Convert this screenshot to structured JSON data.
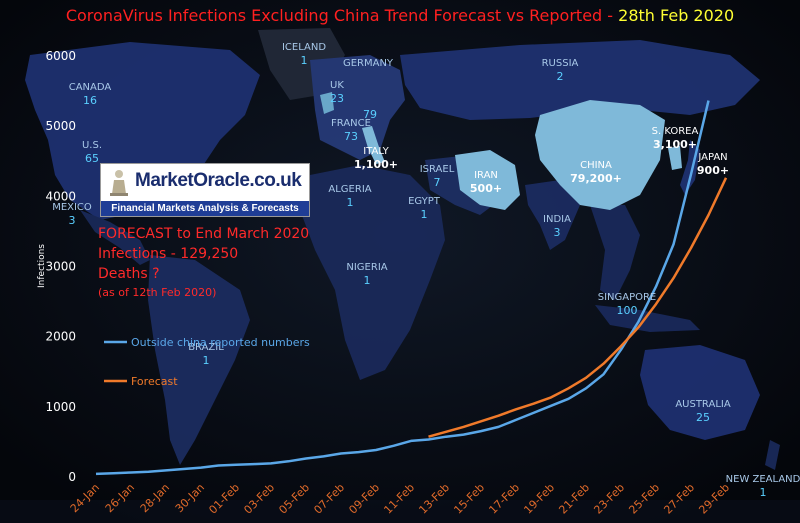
{
  "title": {
    "main": "CoronaVirus Infections Excluding China Trend Forecast vs Reported",
    "sep": " - ",
    "date": "28th Feb 2020"
  },
  "logo": {
    "brand": "MarketOracle.co.uk",
    "tagline": "Financial Markets Analysis & Forecasts"
  },
  "forecast_note": {
    "line1": "FORECAST to End March 2020",
    "line2": "Infections - 129,250",
    "line3": "Deaths ?",
    "line4": "(as of 12th Feb  2020)"
  },
  "countries": [
    {
      "name": "ICELAND",
      "count": "1"
    },
    {
      "name": "CANADA",
      "count": "16"
    },
    {
      "name": "U.S.",
      "count": "65"
    },
    {
      "name": "MEXICO",
      "count": "3"
    },
    {
      "name": "GERMANY",
      "count": ""
    },
    {
      "name": "UK",
      "count": "23"
    },
    {
      "name": "",
      "count": "79"
    },
    {
      "name": "FRANCE",
      "count": "73"
    },
    {
      "name": "ITALY",
      "count": "1,100+"
    },
    {
      "name": "RUSSIA",
      "count": "2"
    },
    {
      "name": "ALGERIA",
      "count": "1"
    },
    {
      "name": "EGYPT",
      "count": "1"
    },
    {
      "name": "ISRAEL",
      "count": "7"
    },
    {
      "name": "IRAN",
      "count": "500+"
    },
    {
      "name": "CHINA",
      "count": "79,200+"
    },
    {
      "name": "S. KOREA",
      "count": "3,100+"
    },
    {
      "name": "JAPAN",
      "count": "900+"
    },
    {
      "name": "INDIA",
      "count": "3"
    },
    {
      "name": "NIGERIA",
      "count": "1"
    },
    {
      "name": "BRAZIL",
      "count": "1"
    },
    {
      "name": "SINGAPORE",
      "count": "100"
    },
    {
      "name": "AUSTRALIA",
      "count": "25"
    },
    {
      "name": "NEW ZEALAND",
      "count": "1"
    }
  ],
  "colors": {
    "reported": "#5aa7e8",
    "forecast": "#f07a2a",
    "axis_tick": "#ffffff",
    "x_tick": "#e06a2a",
    "ocean": "#0a0f1a",
    "land": "#1a2a5a",
    "highlight": "#7fb9d9"
  },
  "chart_data": {
    "type": "line",
    "ylabel": "Infections",
    "ylim": [
      0,
      6000
    ],
    "yticks": [
      0,
      1000,
      2000,
      3000,
      4000,
      5000,
      6000
    ],
    "xticks": [
      "24-Jan",
      "26-Jan",
      "28-Jan",
      "30-Jan",
      "01-Feb",
      "03-Feb",
      "05-Feb",
      "07-Feb",
      "09-Feb",
      "11-Feb",
      "13-Feb",
      "15-Feb",
      "17-Feb",
      "19-Feb",
      "21-Feb",
      "23-Feb",
      "25-Feb",
      "27-Feb",
      "29-Feb"
    ],
    "x_start": "24-Jan",
    "legend_position": "left",
    "series": [
      {
        "name": "Outside china reported numbers",
        "points": [
          [
            "24-Jan",
            30
          ],
          [
            "25-Jan",
            40
          ],
          [
            "26-Jan",
            50
          ],
          [
            "27-Jan",
            60
          ],
          [
            "28-Jan",
            80
          ],
          [
            "29-Jan",
            100
          ],
          [
            "30-Jan",
            120
          ],
          [
            "31-Jan",
            150
          ],
          [
            "01-Feb",
            160
          ],
          [
            "02-Feb",
            170
          ],
          [
            "03-Feb",
            180
          ],
          [
            "04-Feb",
            210
          ],
          [
            "05-Feb",
            250
          ],
          [
            "06-Feb",
            280
          ],
          [
            "07-Feb",
            320
          ],
          [
            "08-Feb",
            340
          ],
          [
            "09-Feb",
            370
          ],
          [
            "10-Feb",
            430
          ],
          [
            "11-Feb",
            500
          ],
          [
            "12-Feb",
            520
          ],
          [
            "13-Feb",
            560
          ],
          [
            "14-Feb",
            590
          ],
          [
            "15-Feb",
            640
          ],
          [
            "16-Feb",
            700
          ],
          [
            "17-Feb",
            800
          ],
          [
            "18-Feb",
            900
          ],
          [
            "19-Feb",
            1000
          ],
          [
            "20-Feb",
            1100
          ],
          [
            "21-Feb",
            1250
          ],
          [
            "22-Feb",
            1450
          ],
          [
            "23-Feb",
            1800
          ],
          [
            "24-Feb",
            2200
          ],
          [
            "25-Feb",
            2700
          ],
          [
            "26-Feb",
            3300
          ],
          [
            "27-Feb",
            4300
          ],
          [
            "28-Feb",
            5350
          ]
        ]
      },
      {
        "name": "Forecast",
        "points": [
          [
            "12-Feb",
            560
          ],
          [
            "13-Feb",
            630
          ],
          [
            "14-Feb",
            700
          ],
          [
            "15-Feb",
            780
          ],
          [
            "16-Feb",
            860
          ],
          [
            "17-Feb",
            950
          ],
          [
            "18-Feb",
            1030
          ],
          [
            "19-Feb",
            1120
          ],
          [
            "20-Feb",
            1250
          ],
          [
            "21-Feb",
            1400
          ],
          [
            "22-Feb",
            1600
          ],
          [
            "23-Feb",
            1850
          ],
          [
            "24-Feb",
            2120
          ],
          [
            "25-Feb",
            2450
          ],
          [
            "26-Feb",
            2820
          ],
          [
            "27-Feb",
            3250
          ],
          [
            "28-Feb",
            3720
          ],
          [
            "29-Feb",
            4250
          ]
        ]
      }
    ]
  }
}
